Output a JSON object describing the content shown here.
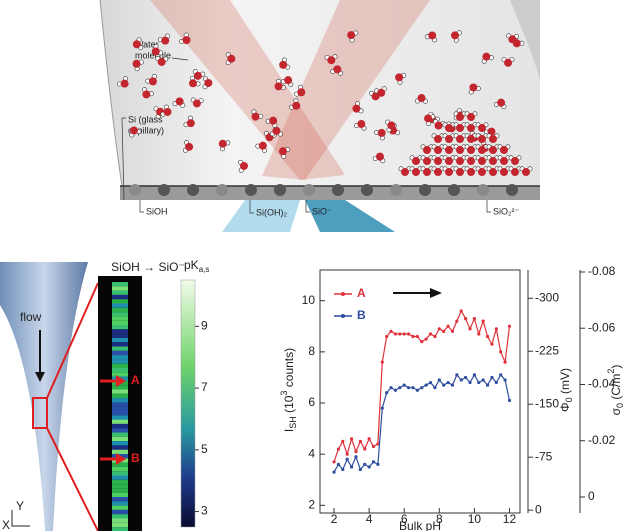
{
  "illustration": {
    "water_label": [
      "Water",
      "molecule"
    ],
    "glass_label": [
      "Si (glass",
      "capillary)"
    ],
    "sites": [
      "SiOH",
      "Si(OH)₂",
      "SiO⁻",
      "SiO₂²⁻"
    ]
  },
  "capillary_panel": {
    "title": "SiOH → SiO⁻",
    "flow": "flow",
    "markers": [
      "A",
      "B"
    ],
    "axes": [
      "Y",
      "X"
    ],
    "colorbar_label": [
      "pK",
      "a,s"
    ],
    "colorbar": {
      "lim": [
        2.5,
        10.5
      ],
      "ticks": [
        9,
        7,
        5,
        3
      ]
    }
  },
  "chart_data": {
    "type": "line",
    "x_label": "Bulk pH",
    "y_label": [
      "I",
      "SH",
      " (10",
      "3",
      " counts)"
    ],
    "y2_label": [
      "Φ",
      "0",
      " (mV)"
    ],
    "y3_label": [
      "σ",
      "0",
      " (C/m",
      "2",
      ")"
    ],
    "x": [
      2,
      2.25,
      2.5,
      2.75,
      3,
      3.25,
      3.5,
      3.75,
      4,
      4.25,
      4.5,
      4.75,
      5,
      5.25,
      5.5,
      5.75,
      6,
      6.25,
      6.5,
      6.75,
      7,
      7.25,
      7.5,
      7.75,
      8,
      8.25,
      8.5,
      8.75,
      9,
      9.25,
      9.5,
      9.75,
      10,
      10.25,
      10.5,
      10.75,
      11,
      11.25,
      11.5,
      11.75,
      12
    ],
    "series": [
      {
        "name": "A",
        "color": "#e0313a",
        "values": [
          3.7,
          4.2,
          4.5,
          4.0,
          4.6,
          4.1,
          4.5,
          4.2,
          4.6,
          4.3,
          4.4,
          7.6,
          8.6,
          8.8,
          8.7,
          8.7,
          8.7,
          8.7,
          8.6,
          8.6,
          8.4,
          8.5,
          8.7,
          8.6,
          8.9,
          8.8,
          9.0,
          8.8,
          9.2,
          9.6,
          9.3,
          8.9,
          9.3,
          8.7,
          9.2,
          8.6,
          8.3,
          8.9,
          8.0,
          7.6,
          9.0
        ]
      },
      {
        "name": "B",
        "color": "#2f4ea0",
        "values": [
          3.3,
          3.6,
          3.4,
          3.8,
          3.5,
          3.9,
          3.4,
          3.6,
          3.5,
          3.7,
          3.6,
          5.8,
          6.4,
          6.6,
          6.5,
          6.6,
          6.7,
          6.6,
          6.6,
          6.5,
          6.6,
          6.7,
          6.8,
          6.6,
          6.9,
          6.7,
          6.8,
          6.7,
          7.1,
          6.9,
          7.0,
          6.8,
          7.1,
          6.8,
          6.9,
          6.7,
          7.0,
          6.8,
          7.1,
          6.9,
          6.1
        ]
      }
    ],
    "xlim": [
      1.2,
      12.6
    ],
    "xticks": [
      2,
      4,
      6,
      8,
      10,
      12
    ],
    "ylim": [
      1.7,
      11.2
    ],
    "yticks": [
      2,
      4,
      6,
      8,
      10
    ],
    "y2lim": [
      4,
      -340
    ],
    "y2ticks": [
      -300,
      -225,
      -150,
      -75,
      0
    ],
    "y3lim": [
      0.0057,
      -0.0807
    ],
    "y3ticks": [
      -0.08,
      -0.06,
      -0.04,
      -0.02,
      0
    ]
  }
}
